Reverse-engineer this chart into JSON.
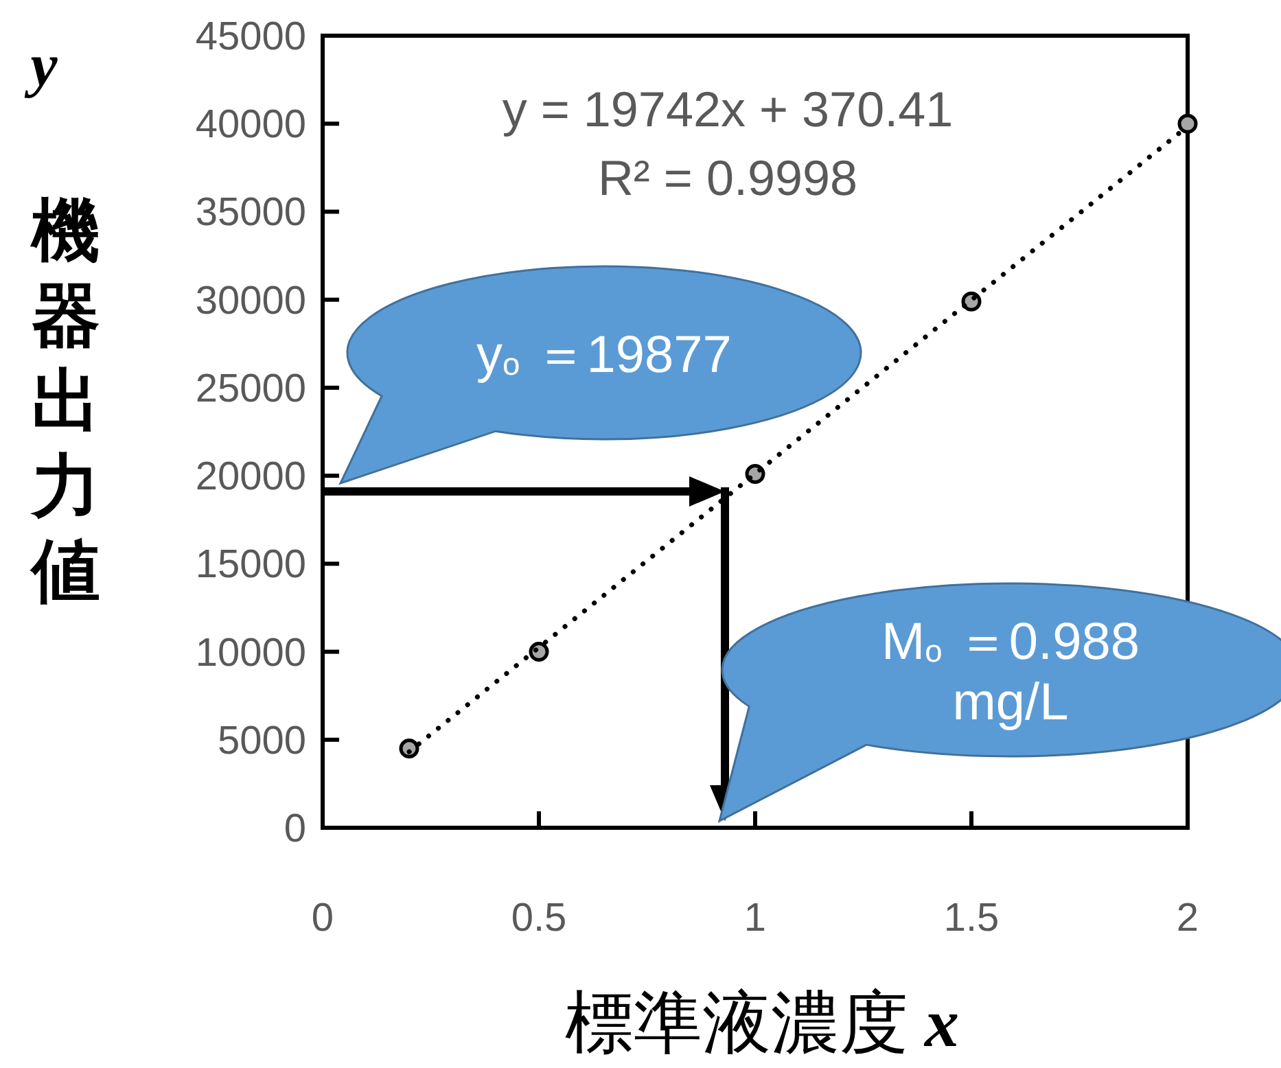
{
  "chart_data": {
    "type": "scatter",
    "xlabel": "標準液濃度 x",
    "ylabel": "機器出力値",
    "xlim": [
      0,
      2
    ],
    "xticks": [
      0,
      0.5,
      1,
      1.5,
      2
    ],
    "ylim": [
      0,
      45000
    ],
    "yticks": [
      0,
      5000,
      10000,
      15000,
      20000,
      25000,
      30000,
      35000,
      40000,
      45000
    ],
    "grid": false,
    "series": [
      {
        "x": [
          0.2,
          0.5,
          1,
          1.5,
          2
        ],
        "values": [
          4500,
          10000,
          20100,
          29900,
          40000
        ],
        "color": "#a6a6a6",
        "marker": "circle"
      },
      {
        "type": "line",
        "x": [
          0.2,
          2
        ],
        "values": [
          4320,
          39850
        ],
        "color": "#000000",
        "line_style": "dotted",
        "marker": "none"
      }
    ],
    "annotations": [
      "y = 19742x + 370.41",
      "R² = 0.9998",
      "y$_{o}$ ＝19877",
      "M$_{o}$ ＝0.988 mg/L",
      "y"
    ]
  }
}
